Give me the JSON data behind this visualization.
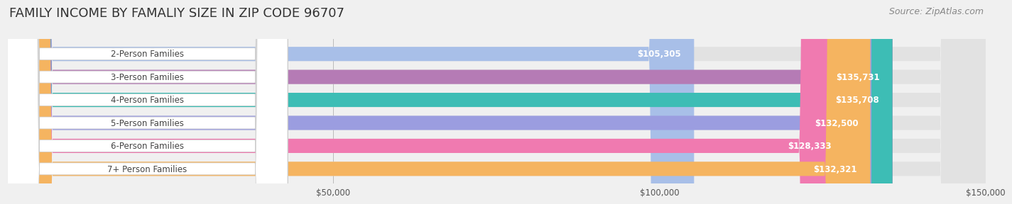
{
  "title": "FAMILY INCOME BY FAMALIY SIZE IN ZIP CODE 96707",
  "source": "Source: ZipAtlas.com",
  "categories": [
    "2-Person Families",
    "3-Person Families",
    "4-Person Families",
    "5-Person Families",
    "6-Person Families",
    "7+ Person Families"
  ],
  "values": [
    105305,
    135731,
    135708,
    132500,
    128333,
    132321
  ],
  "bar_colors": [
    "#a8bfe8",
    "#b57bb5",
    "#3dbdb5",
    "#9b9de0",
    "#f07ab0",
    "#f5b460"
  ],
  "value_labels": [
    "$105,305",
    "$135,731",
    "$135,708",
    "$132,500",
    "$128,333",
    "$132,321"
  ],
  "xlim": [
    0,
    150000
  ],
  "xticks": [
    0,
    50000,
    100000,
    150000
  ],
  "xtick_labels": [
    "",
    "$50,000",
    "$100,000",
    "$150,000"
  ],
  "background_color": "#f0f0f0",
  "title_fontsize": 13,
  "label_fontsize": 8.5,
  "value_fontsize": 8.5,
  "source_fontsize": 9,
  "bar_height": 0.62
}
